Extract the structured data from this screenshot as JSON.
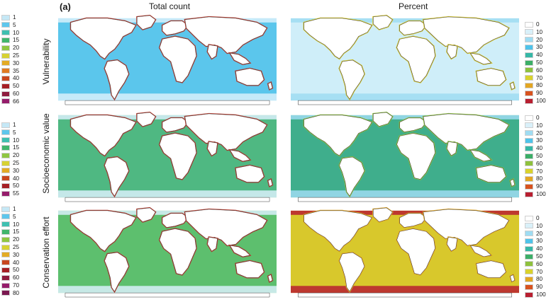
{
  "panel_letter": "(a)",
  "columns": [
    "Total count",
    "Percent"
  ],
  "rows": [
    "Vulnerability",
    "Socioeconomic value",
    "Conservation effort"
  ],
  "legends": {
    "vulnerability_count": {
      "labels": [
        "1",
        "5",
        "10",
        "15",
        "20",
        "25",
        "30",
        "35",
        "40",
        "50",
        "60",
        "66"
      ],
      "colors": [
        "#c5e8f6",
        "#5ec6ec",
        "#3fbfb0",
        "#41b56c",
        "#8fc642",
        "#d7d233",
        "#e3ab25",
        "#e07b22",
        "#c8471f",
        "#a51f24",
        "#8e1b3e",
        "#951c6b"
      ]
    },
    "socio_count": {
      "labels": [
        "1",
        "5",
        "10",
        "15",
        "20",
        "25",
        "30",
        "40",
        "50",
        "55"
      ],
      "colors": [
        "#c5e8f6",
        "#5ec6ec",
        "#3fbfb0",
        "#41b56c",
        "#8fc642",
        "#d7d233",
        "#e3ab25",
        "#c8471f",
        "#a51f24",
        "#951c6b"
      ]
    },
    "conservation_count": {
      "labels": [
        "1",
        "5",
        "10",
        "15",
        "20",
        "25",
        "30",
        "40",
        "50",
        "60",
        "70",
        "80"
      ],
      "colors": [
        "#c5e8f6",
        "#5ec6ec",
        "#3fbfb0",
        "#41b56c",
        "#8fc642",
        "#d7d233",
        "#e3ab25",
        "#c8471f",
        "#a51f24",
        "#8e1b3e",
        "#951c6b",
        "#7a1850"
      ]
    },
    "percent": {
      "labels": [
        "0",
        "10",
        "20",
        "30",
        "40",
        "50",
        "60",
        "70",
        "80",
        "90",
        "100"
      ],
      "colors": [
        "#ffffff",
        "#d9f0f9",
        "#9fdcf2",
        "#4fc3ea",
        "#36b7a6",
        "#3cae67",
        "#8ec13e",
        "#d9d22c",
        "#e3a623",
        "#d8531f",
        "#b81f30"
      ]
    }
  },
  "map_colors": {
    "ocean_vuln_count": "#5bc6ec",
    "ocean_vuln_pct": "#cfeef9",
    "ocean_socio_count": "#4fb882",
    "ocean_socio_pct": "#3fae8c",
    "ocean_cons_count": "#5dbf6e",
    "ocean_cons_pct": "#d8c82c",
    "polar": "#d9f0fb",
    "coast_hot": "#b7372a",
    "land": "#ffffff",
    "outline": "#3a3a3a"
  }
}
